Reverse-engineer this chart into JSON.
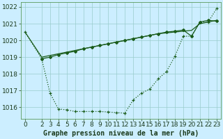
{
  "title": "Graphe pression niveau de la mer (hPa)",
  "background_color": "#cceeff",
  "grid_color": "#99cccc",
  "line_color": "#1a5c1a",
  "xlim": [
    -0.5,
    23.5
  ],
  "ylim": [
    1015.3,
    1022.3
  ],
  "yticks": [
    1016,
    1017,
    1018,
    1019,
    1020,
    1021,
    1022
  ],
  "xticks": [
    0,
    2,
    3,
    4,
    5,
    6,
    7,
    8,
    9,
    10,
    11,
    12,
    13,
    14,
    15,
    16,
    17,
    18,
    19,
    20,
    21,
    22,
    23
  ],
  "lineA_x": [
    0,
    2,
    3,
    4,
    5,
    6,
    7,
    8,
    9,
    10,
    11,
    12,
    13,
    14,
    15,
    16,
    17,
    18,
    19,
    20,
    21,
    22,
    23
  ],
  "lineA_y": [
    1020.5,
    1019.0,
    1019.1,
    1019.2,
    1019.3,
    1019.4,
    1019.5,
    1019.6,
    1019.7,
    1019.8,
    1019.9,
    1020.0,
    1020.1,
    1020.2,
    1020.3,
    1020.4,
    1020.45,
    1020.5,
    1020.55,
    1020.6,
    1021.0,
    1021.1,
    1021.2
  ],
  "lineB_x": [
    2,
    3,
    4,
    5,
    6,
    7,
    8,
    9,
    10,
    11,
    12,
    13,
    14,
    15,
    16,
    17,
    18,
    19,
    20,
    21,
    22,
    23
  ],
  "lineB_y": [
    1018.9,
    1019.0,
    1019.15,
    1019.25,
    1019.35,
    1019.5,
    1019.6,
    1019.7,
    1019.8,
    1019.9,
    1020.0,
    1020.1,
    1020.2,
    1020.3,
    1020.4,
    1020.5,
    1020.55,
    1020.62,
    1020.25,
    1021.1,
    1021.2,
    1021.15
  ],
  "lineC_x": [
    0,
    2,
    3,
    4,
    5,
    6,
    7,
    8,
    9,
    10,
    11,
    12,
    13,
    14,
    15,
    16,
    17,
    18,
    19,
    20,
    21,
    22,
    23
  ],
  "lineC_y": [
    1020.5,
    1018.9,
    1016.85,
    1015.9,
    1015.85,
    1015.75,
    1015.75,
    1015.75,
    1015.75,
    1015.72,
    1015.68,
    1015.65,
    1016.45,
    1016.85,
    1017.1,
    1017.7,
    1018.15,
    1019.05,
    1020.25,
    1020.25,
    1021.1,
    1021.1,
    1021.9
  ],
  "xlabel_fontsize": 6.5,
  "ylabel_fontsize": 6.5,
  "title_fontsize": 7
}
